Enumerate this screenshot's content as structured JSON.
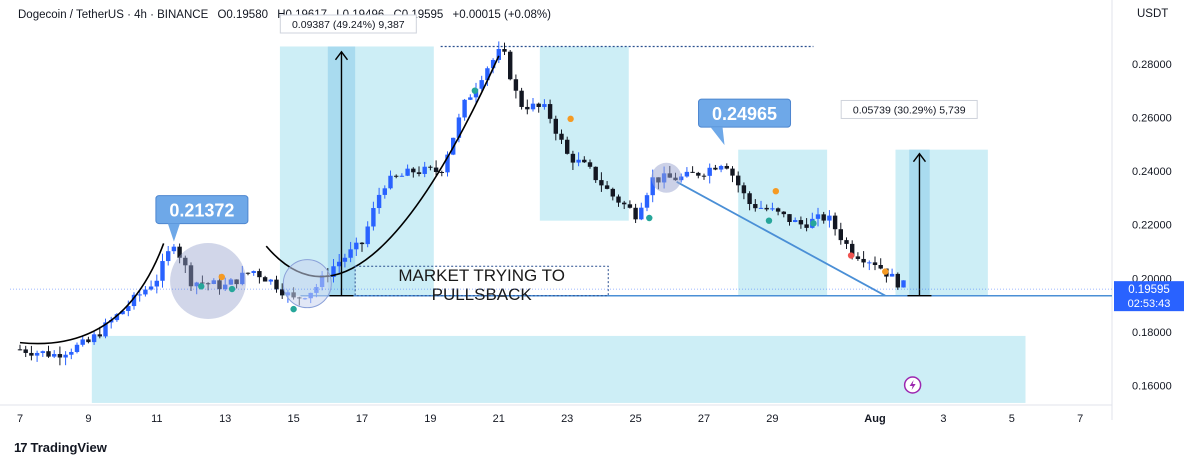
{
  "header": {
    "symbol": "Dogecoin / TetherUS · 4h · BINANCE",
    "open": "O0.19580",
    "high": "H0.19617",
    "low": "L0.19496",
    "close": "C0.19595",
    "change": "+0.00015 (+0.08%)"
  },
  "axis_unit": "USDT",
  "brand": "TradingView",
  "colors": {
    "up": "#2962ff",
    "down": "#131722",
    "zone": "#cdeef6",
    "accent_line": "#4a8fd6",
    "label_bg": "#6ea8e8",
    "price_tag": "#2962ff"
  },
  "chart_data": {
    "type": "candlestick",
    "interval": "4h",
    "y_axis": {
      "ticks": [
        0.16,
        0.18,
        0.2,
        0.22,
        0.24,
        0.26,
        0.28
      ],
      "tick_labels": [
        "0.16000",
        "0.18000",
        "0.20000",
        "0.22000",
        "0.24000",
        "0.26000",
        "0.28000"
      ],
      "range": [
        0.15,
        0.29
      ],
      "position": "right"
    },
    "x_axis": {
      "tick_labels": [
        "7",
        "9",
        "11",
        "13",
        "15",
        "17",
        "19",
        "21",
        "23",
        "25",
        "27",
        "29",
        "Aug",
        "3",
        "5",
        "7"
      ],
      "tick_days": [
        7,
        9,
        11,
        13,
        15,
        17,
        19,
        21,
        23,
        25,
        27,
        29,
        32,
        34,
        36,
        38
      ]
    },
    "current_price": {
      "value": 0.19595,
      "label": "0.19595",
      "countdown": "02:53:43"
    },
    "daily_closes": [
      {
        "day": 7,
        "close": 0.1735
      },
      {
        "day": 8,
        "close": 0.1715
      },
      {
        "day": 9,
        "close": 0.176
      },
      {
        "day": 10,
        "close": 0.188
      },
      {
        "day": 11,
        "close": 0.2
      },
      {
        "day": 11.5,
        "close": 0.2137
      },
      {
        "day": 12,
        "close": 0.199
      },
      {
        "day": 13,
        "close": 0.197
      },
      {
        "day": 13.8,
        "close": 0.203
      },
      {
        "day": 14.4,
        "close": 0.1985
      },
      {
        "day": 15,
        "close": 0.192
      },
      {
        "day": 15.6,
        "close": 0.196
      },
      {
        "day": 16.2,
        "close": 0.205
      },
      {
        "day": 17,
        "close": 0.213
      },
      {
        "day": 17.6,
        "close": 0.235
      },
      {
        "day": 18.5,
        "close": 0.24
      },
      {
        "day": 19.3,
        "close": 0.24
      },
      {
        "day": 20,
        "close": 0.265
      },
      {
        "day": 20.6,
        "close": 0.278
      },
      {
        "day": 21.1,
        "close": 0.2855
      },
      {
        "day": 21.6,
        "close": 0.265
      },
      {
        "day": 22.4,
        "close": 0.263
      },
      {
        "day": 23,
        "close": 0.246
      },
      {
        "day": 23.6,
        "close": 0.241
      },
      {
        "day": 24.3,
        "close": 0.231
      },
      {
        "day": 25,
        "close": 0.224
      },
      {
        "day": 25.5,
        "close": 0.237
      },
      {
        "day": 26.4,
        "close": 0.2375
      },
      {
        "day": 27,
        "close": 0.24
      },
      {
        "day": 27.6,
        "close": 0.244
      },
      {
        "day": 28.3,
        "close": 0.228
      },
      {
        "day": 29,
        "close": 0.225
      },
      {
        "day": 29.8,
        "close": 0.22
      },
      {
        "day": 30.6,
        "close": 0.223
      },
      {
        "day": 31.3,
        "close": 0.21
      },
      {
        "day": 32,
        "close": 0.206
      },
      {
        "day": 32.6,
        "close": 0.199
      },
      {
        "day": 33.0,
        "close": 0.196
      }
    ],
    "annotations": {
      "price_labels": [
        {
          "text": "0.21372",
          "day": 11.5,
          "price": 0.2137
        },
        {
          "text": "0.24965",
          "day": 27.6,
          "price": 0.2497
        }
      ],
      "measure_labels": [
        {
          "text": "0.09387 (49.24%) 9,387",
          "day": 16.6
        },
        {
          "text": "0.05739 (30.29%) 5,739",
          "day": 33.0
        }
      ],
      "text_note": "MARKET TRYING TO\nPULLSBACK"
    }
  }
}
